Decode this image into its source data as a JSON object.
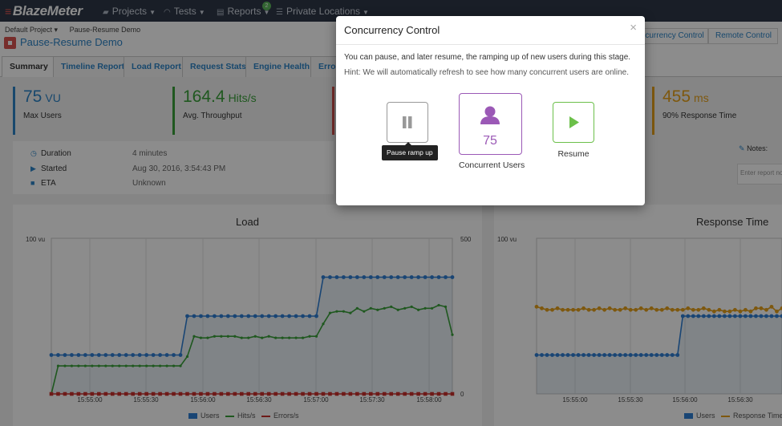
{
  "topbar": {
    "logo": "BlazeMeter",
    "nav": [
      {
        "label": "Projects",
        "icon": "folder-icon"
      },
      {
        "label": "Tests",
        "icon": "gauge-icon"
      },
      {
        "label": "Reports",
        "icon": "document-icon"
      },
      {
        "label": "Private Locations",
        "icon": "database-icon"
      }
    ],
    "reports_badge": "2"
  },
  "breadcrumb": [
    "Default Project ▾",
    "Pause-Resume Demo"
  ],
  "page_title": "Pause-Resume Demo",
  "right_buttons": [
    "Concurrency Control",
    "Remote Control"
  ],
  "tabs": [
    "Summary",
    "Timeline Report",
    "Load Report",
    "Request Stats",
    "Engine Health",
    "Errors"
  ],
  "kpis": [
    {
      "value": "75",
      "unit": "VU",
      "label": "Max Users",
      "color": "#2c84c7"
    },
    {
      "value": "164.4",
      "unit": "Hits/s",
      "label": "Avg. Throughput",
      "color": "#3aa13a"
    },
    {
      "value": "",
      "unit": "",
      "label": "",
      "color": "#d9534f"
    },
    {
      "value": "455",
      "unit": "ms",
      "label": "90% Response Time",
      "color": "#e6a11b"
    }
  ],
  "details": [
    {
      "label": "Duration",
      "value": "4 minutes"
    },
    {
      "label": "Started",
      "value": "Aug 30, 2016, 3:54:43 PM"
    },
    {
      "label": "ETA",
      "value": "Unknown"
    }
  ],
  "notes": {
    "label": "Notes:",
    "placeholder": "Enter report notes"
  },
  "chart_data": [
    {
      "type": "line",
      "title": "Load",
      "y_left_label": "100 vu",
      "y_right_top": "500",
      "y_right_bottom": "0",
      "x_ticks": [
        "15:55:00",
        "15:55:30",
        "15:56:00",
        "15:56:30",
        "15:57:00",
        "15:57:30",
        "15:58:00"
      ],
      "series": [
        {
          "name": "Users",
          "color": "#2f7fd4",
          "values": [
            25,
            25,
            25,
            25,
            25,
            25,
            25,
            25,
            25,
            25,
            25,
            25,
            25,
            25,
            25,
            25,
            25,
            25,
            25,
            25,
            50,
            50,
            50,
            50,
            50,
            50,
            50,
            50,
            50,
            50,
            50,
            50,
            50,
            50,
            50,
            50,
            50,
            50,
            50,
            50,
            75,
            75,
            75,
            75,
            75,
            75,
            75,
            75,
            75,
            75,
            75,
            75,
            75,
            75,
            75,
            75,
            75,
            75,
            75,
            75
          ]
        },
        {
          "name": "Hits/s",
          "color": "#3aa13a",
          "values": [
            0,
            18,
            18,
            18,
            18,
            18,
            18,
            18,
            18,
            18,
            18,
            18,
            18,
            18,
            18,
            18,
            18,
            18,
            18,
            18,
            24,
            37,
            36,
            36,
            37,
            37,
            37,
            37,
            36,
            36,
            37,
            36,
            37,
            36,
            36,
            36,
            36,
            36,
            37,
            37,
            45,
            52,
            53,
            53,
            52,
            55,
            53,
            55,
            54,
            55,
            56,
            54,
            55,
            56,
            54,
            55,
            55,
            57,
            56,
            38
          ]
        },
        {
          "name": "Errors/s",
          "color": "#c9302c",
          "values": [
            0,
            0,
            0,
            0,
            0,
            0,
            0,
            0,
            0,
            0,
            0,
            0,
            0,
            0,
            0,
            0,
            0,
            0,
            0,
            0,
            0,
            0,
            0,
            0,
            0,
            0,
            0,
            0,
            0,
            0,
            0,
            0,
            0,
            0,
            0,
            0,
            0,
            0,
            0,
            0,
            0,
            0,
            0,
            0,
            0,
            0,
            0,
            0,
            0,
            0,
            0,
            0,
            0,
            0,
            0,
            0,
            0,
            0,
            0,
            0
          ]
        }
      ]
    },
    {
      "type": "line",
      "title": "Response Time",
      "y_left_label": "100 vu",
      "x_ticks": [
        "15:55:00",
        "15:55:30",
        "15:56:00",
        "15:56:30"
      ],
      "series": [
        {
          "name": "Users",
          "color": "#2f7fd4",
          "values": [
            25,
            25,
            25,
            25,
            25,
            25,
            25,
            25,
            25,
            25,
            25,
            25,
            25,
            25,
            25,
            25,
            25,
            25,
            25,
            25,
            25,
            25,
            25,
            25,
            25,
            25,
            25,
            25,
            50,
            50,
            50,
            50,
            50,
            50,
            50,
            50,
            50,
            50,
            50,
            50,
            50,
            50,
            50,
            50,
            50,
            50,
            50,
            50
          ]
        },
        {
          "name": "Response Time",
          "color": "#e6a11b",
          "values": [
            56,
            55,
            54,
            54,
            55,
            54,
            54,
            54,
            54,
            55,
            54,
            54,
            55,
            54,
            55,
            54,
            54,
            55,
            54,
            54,
            55,
            54,
            55,
            54,
            54,
            55,
            54,
            54,
            54,
            55,
            54,
            54,
            55,
            54,
            53,
            54,
            53,
            53,
            54,
            53,
            54,
            53,
            55,
            55,
            54,
            56,
            53,
            55
          ]
        }
      ]
    }
  ],
  "modal": {
    "title": "Concurrency Control",
    "close": "×",
    "text": "You can pause, and later resume, the ramping up of new users during this stage.",
    "hint": "Hint: We will automatically refresh to see how many concurrent users are online.",
    "pause_tooltip": "Pause ramp up",
    "concurrent_value": "75",
    "concurrent_label": "Concurrent Users",
    "resume_label": "Resume",
    "colors": {
      "pause": "#888888",
      "users": "#9b59b6",
      "resume": "#6cc04a"
    }
  }
}
